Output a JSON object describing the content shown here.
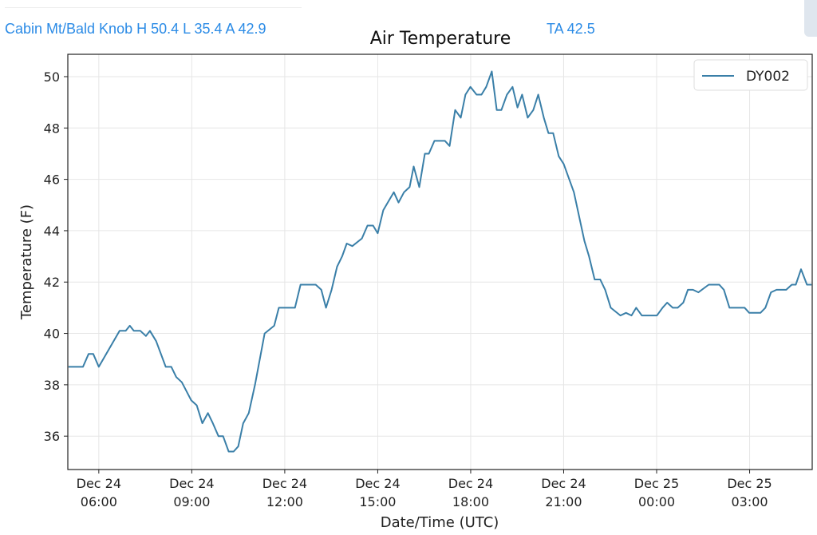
{
  "header": {
    "station_summary": "Cabin Mt/Bald Knob H 50.4 L 35.4 A 42.9",
    "ta": "TA 42.5"
  },
  "colors": {
    "line": "#3a7fa8",
    "header_text": "#2b8be6",
    "grid": "#e6e6e6"
  },
  "chart_data": {
    "type": "line",
    "title": "Air Temperature",
    "xlabel": "Date/Time (UTC)",
    "ylabel": "Temperature (F)",
    "x_units": "hours since Dec 24 00:00 UTC",
    "xlim": [
      5.0,
      29.02
    ],
    "ylim": [
      34.7,
      50.87
    ],
    "grid": true,
    "legend": {
      "position": "top-right",
      "entries": [
        "DY002"
      ]
    },
    "yticks": [
      36,
      38,
      40,
      42,
      44,
      46,
      48,
      50
    ],
    "xticks": [
      {
        "value": 6,
        "line1": "Dec 24",
        "line2": "06:00"
      },
      {
        "value": 9,
        "line1": "Dec 24",
        "line2": "09:00"
      },
      {
        "value": 12,
        "line1": "Dec 24",
        "line2": "12:00"
      },
      {
        "value": 15,
        "line1": "Dec 24",
        "line2": "15:00"
      },
      {
        "value": 18,
        "line1": "Dec 24",
        "line2": "18:00"
      },
      {
        "value": 21,
        "line1": "Dec 24",
        "line2": "21:00"
      },
      {
        "value": 24,
        "line1": "Dec 25",
        "line2": "00:00"
      },
      {
        "value": 27,
        "line1": "Dec 25",
        "line2": "03:00"
      }
    ],
    "series": [
      {
        "name": "DY002",
        "points": [
          [
            5.02,
            38.7
          ],
          [
            5.49,
            38.7
          ],
          [
            5.67,
            39.2
          ],
          [
            5.82,
            39.2
          ],
          [
            6.0,
            38.7
          ],
          [
            6.67,
            40.1
          ],
          [
            6.87,
            40.1
          ],
          [
            7.0,
            40.3
          ],
          [
            7.13,
            40.1
          ],
          [
            7.34,
            40.1
          ],
          [
            7.52,
            39.9
          ],
          [
            7.65,
            40.1
          ],
          [
            7.85,
            39.7
          ],
          [
            8.16,
            38.7
          ],
          [
            8.34,
            38.7
          ],
          [
            8.5,
            38.3
          ],
          [
            8.68,
            38.1
          ],
          [
            8.98,
            37.4
          ],
          [
            9.16,
            37.2
          ],
          [
            9.34,
            36.5
          ],
          [
            9.52,
            36.9
          ],
          [
            9.68,
            36.5
          ],
          [
            9.86,
            36.0
          ],
          [
            10.01,
            36.0
          ],
          [
            10.19,
            35.4
          ],
          [
            10.35,
            35.4
          ],
          [
            10.5,
            35.6
          ],
          [
            10.66,
            36.5
          ],
          [
            10.84,
            36.9
          ],
          [
            11.04,
            38.0
          ],
          [
            11.35,
            40.0
          ],
          [
            11.66,
            40.3
          ],
          [
            11.81,
            41.0
          ],
          [
            12.33,
            41.0
          ],
          [
            12.51,
            41.9
          ],
          [
            13.0,
            41.9
          ],
          [
            13.18,
            41.7
          ],
          [
            13.33,
            41.0
          ],
          [
            13.51,
            41.7
          ],
          [
            13.69,
            42.6
          ],
          [
            13.85,
            43.0
          ],
          [
            14.0,
            43.5
          ],
          [
            14.18,
            43.4
          ],
          [
            14.49,
            43.7
          ],
          [
            14.67,
            44.2
          ],
          [
            14.85,
            44.2
          ],
          [
            15.0,
            43.9
          ],
          [
            15.18,
            44.8
          ],
          [
            15.52,
            45.5
          ],
          [
            15.67,
            45.1
          ],
          [
            15.85,
            45.5
          ],
          [
            16.03,
            45.7
          ],
          [
            16.16,
            46.5
          ],
          [
            16.34,
            45.7
          ],
          [
            16.52,
            47.0
          ],
          [
            16.65,
            47.0
          ],
          [
            16.83,
            47.5
          ],
          [
            17.17,
            47.5
          ],
          [
            17.32,
            47.3
          ],
          [
            17.5,
            48.7
          ],
          [
            17.68,
            48.4
          ],
          [
            17.83,
            49.3
          ],
          [
            17.99,
            49.6
          ],
          [
            18.19,
            49.3
          ],
          [
            18.35,
            49.3
          ],
          [
            18.5,
            49.6
          ],
          [
            18.68,
            50.2
          ],
          [
            18.84,
            48.7
          ],
          [
            18.99,
            48.7
          ],
          [
            19.17,
            49.3
          ],
          [
            19.35,
            49.6
          ],
          [
            19.51,
            48.8
          ],
          [
            19.66,
            49.3
          ],
          [
            19.84,
            48.4
          ],
          [
            20.02,
            48.7
          ],
          [
            20.18,
            49.3
          ],
          [
            20.36,
            48.4
          ],
          [
            20.51,
            47.8
          ],
          [
            20.66,
            47.8
          ],
          [
            20.84,
            46.9
          ],
          [
            21.0,
            46.6
          ],
          [
            21.33,
            45.5
          ],
          [
            21.67,
            43.6
          ],
          [
            21.82,
            43.0
          ],
          [
            22.0,
            42.1
          ],
          [
            22.18,
            42.1
          ],
          [
            22.34,
            41.7
          ],
          [
            22.52,
            41.0
          ],
          [
            22.83,
            40.7
          ],
          [
            23.01,
            40.8
          ],
          [
            23.19,
            40.7
          ],
          [
            23.34,
            41.0
          ],
          [
            23.52,
            40.7
          ],
          [
            24.01,
            40.7
          ],
          [
            24.19,
            41.0
          ],
          [
            24.34,
            41.2
          ],
          [
            24.52,
            41.0
          ],
          [
            24.68,
            41.0
          ],
          [
            24.86,
            41.2
          ],
          [
            25.01,
            41.7
          ],
          [
            25.17,
            41.7
          ],
          [
            25.35,
            41.6
          ],
          [
            25.68,
            41.9
          ],
          [
            26.02,
            41.9
          ],
          [
            26.17,
            41.7
          ],
          [
            26.35,
            41.0
          ],
          [
            26.84,
            41.0
          ],
          [
            26.99,
            40.8
          ],
          [
            27.35,
            40.8
          ],
          [
            27.51,
            41.0
          ],
          [
            27.69,
            41.6
          ],
          [
            27.87,
            41.7
          ],
          [
            28.18,
            41.7
          ],
          [
            28.36,
            41.9
          ],
          [
            28.49,
            41.9
          ],
          [
            28.66,
            42.5
          ],
          [
            28.85,
            41.9
          ],
          [
            29.0,
            41.9
          ]
        ]
      }
    ]
  }
}
